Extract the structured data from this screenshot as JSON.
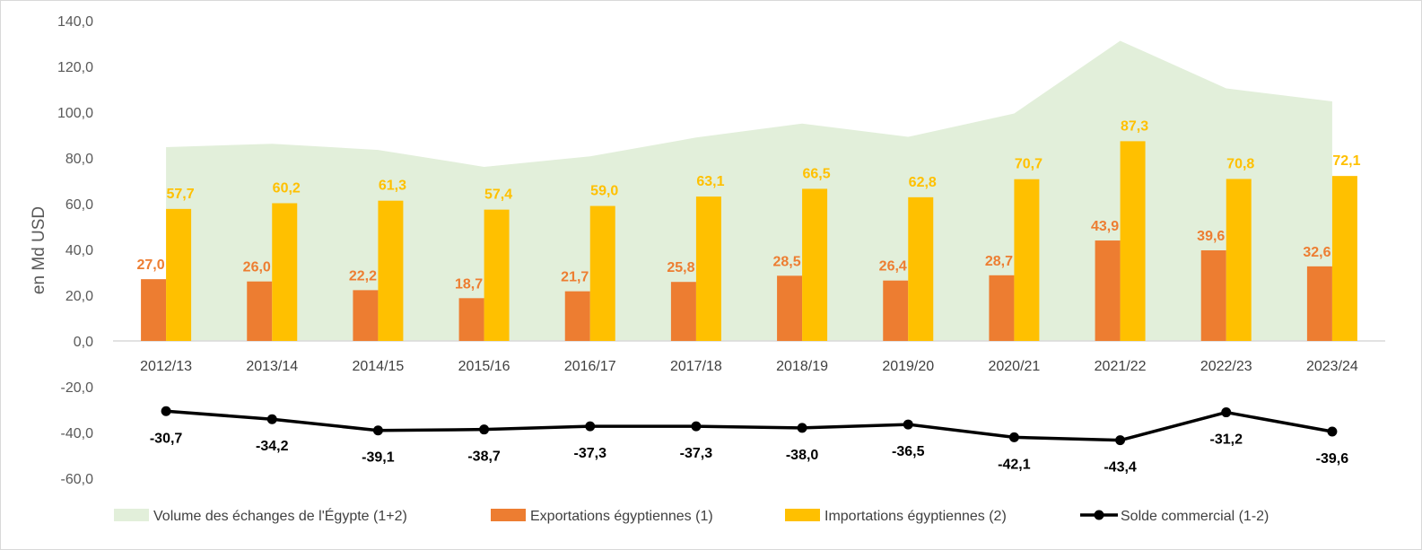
{
  "chart_data": {
    "type": "bar",
    "ylabel": "en Md USD",
    "ylim": [
      -60,
      140
    ],
    "yticks": [
      "140,0",
      "120,0",
      "100,0",
      "80,0",
      "60,0",
      "40,0",
      "20,0",
      "0,0",
      "-20,0",
      "-40,0",
      "-60,0"
    ],
    "ytick_values": [
      140,
      120,
      100,
      80,
      60,
      40,
      20,
      0,
      -20,
      -40,
      -60
    ],
    "categories": [
      "2012/13",
      "2013/14",
      "2014/15",
      "2015/16",
      "2016/17",
      "2017/18",
      "2018/19",
      "2019/20",
      "2020/21",
      "2021/22",
      "2022/23",
      "2023/24"
    ],
    "series": [
      {
        "name": "Volume des échanges de l'Égypte (1+2)",
        "kind": "area",
        "color": "#e2efda",
        "values": [
          84.7,
          86.2,
          83.5,
          76.1,
          80.7,
          88.9,
          95.0,
          89.2,
          99.4,
          131.2,
          110.4,
          104.7
        ]
      },
      {
        "name": "Exportations égyptiennes (1)",
        "kind": "bar",
        "color": "#ed7d31",
        "values": [
          27.0,
          26.0,
          22.2,
          18.7,
          21.7,
          25.8,
          28.5,
          26.4,
          28.7,
          43.9,
          39.6,
          32.6
        ],
        "labels": [
          "27,0",
          "26,0",
          "22,2",
          "18,7",
          "21,7",
          "25,8",
          "28,5",
          "26,4",
          "28,7",
          "43,9",
          "39,6",
          "32,6"
        ]
      },
      {
        "name": "Importations égyptiennes (2)",
        "kind": "bar",
        "color": "#ffc000",
        "values": [
          57.7,
          60.2,
          61.3,
          57.4,
          59.0,
          63.1,
          66.5,
          62.8,
          70.7,
          87.3,
          70.8,
          72.1
        ],
        "labels": [
          "57,7",
          "60,2",
          "61,3",
          "57,4",
          "59,0",
          "63,1",
          "66,5",
          "62,8",
          "70,7",
          "87,3",
          "70,8",
          "72,1"
        ]
      },
      {
        "name": "Solde commercial  (1-2)",
        "kind": "line",
        "color": "#000000",
        "values": [
          -30.7,
          -34.2,
          -39.1,
          -38.7,
          -37.3,
          -37.3,
          -38.0,
          -36.5,
          -42.1,
          -43.4,
          -31.2,
          -39.6
        ],
        "labels": [
          "-30,7",
          "-34,2",
          "-39,1",
          "-38,7",
          "-37,3",
          "-37,3",
          "-38,0",
          "-36,5",
          "-42,1",
          "-43,4",
          "-31,2",
          "-39,6"
        ]
      }
    ],
    "legend_position": "bottom"
  }
}
